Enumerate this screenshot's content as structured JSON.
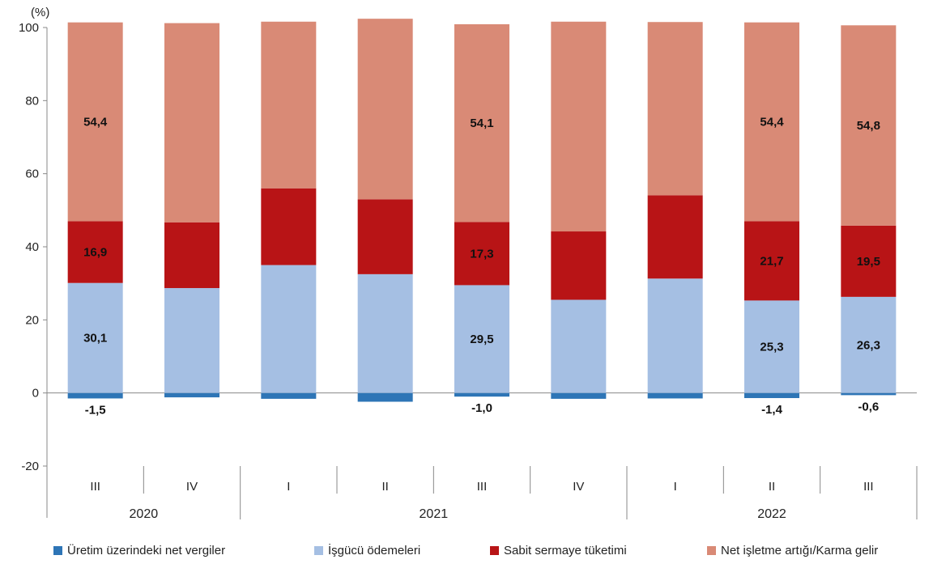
{
  "chart_data": {
    "type": "bar",
    "stacked": true,
    "unit": "(%)",
    "ylim": [
      -20,
      100
    ],
    "yticks": [
      -20,
      0,
      20,
      40,
      60,
      80,
      100
    ],
    "grid": false,
    "legend_position": "bottom",
    "categories": [
      "III",
      "IV",
      "I",
      "II",
      "III",
      "IV",
      "I",
      "II",
      "III"
    ],
    "years": [
      {
        "label": "2020",
        "span": [
          0,
          1
        ]
      },
      {
        "label": "2021",
        "span": [
          2,
          5
        ]
      },
      {
        "label": "2022",
        "span": [
          6,
          8
        ]
      }
    ],
    "series": [
      {
        "name": "Üretim üzerindeki net vergiler",
        "color": "#2e75b6",
        "values": [
          -1.5,
          -1.2,
          -1.6,
          -2.4,
          -1.0,
          -1.6,
          -1.5,
          -1.4,
          -0.6
        ]
      },
      {
        "name": "İşgücü ödemeleri",
        "color": "#a5bfe3",
        "values": [
          30.1,
          28.7,
          35.0,
          32.5,
          29.5,
          25.5,
          31.3,
          25.3,
          26.3
        ]
      },
      {
        "name": "Sabit sermaye tüketimi",
        "color": "#b81416",
        "values": [
          16.9,
          18.0,
          21.0,
          20.5,
          17.3,
          18.7,
          22.8,
          21.7,
          19.5
        ]
      },
      {
        "name": "Net işletme artığı/Karma gelir",
        "color": "#d98a76",
        "values": [
          54.4,
          54.5,
          45.6,
          49.4,
          54.1,
          57.4,
          47.4,
          54.4,
          54.8
        ]
      }
    ],
    "data_labels": [
      {
        "series": 0,
        "index": 0,
        "text": "-1,5"
      },
      {
        "series": 0,
        "index": 4,
        "text": "-1,0"
      },
      {
        "series": 0,
        "index": 7,
        "text": "-1,4"
      },
      {
        "series": 0,
        "index": 8,
        "text": "-0,6"
      },
      {
        "series": 1,
        "index": 0,
        "text": "30,1"
      },
      {
        "series": 1,
        "index": 4,
        "text": "29,5"
      },
      {
        "series": 1,
        "index": 7,
        "text": "25,3"
      },
      {
        "series": 1,
        "index": 8,
        "text": "26,3"
      },
      {
        "series": 2,
        "index": 0,
        "text": "16,9"
      },
      {
        "series": 2,
        "index": 4,
        "text": "17,3"
      },
      {
        "series": 2,
        "index": 7,
        "text": "21,7"
      },
      {
        "series": 2,
        "index": 8,
        "text": "19,5"
      },
      {
        "series": 3,
        "index": 0,
        "text": "54,4"
      },
      {
        "series": 3,
        "index": 4,
        "text": "54,1"
      },
      {
        "series": 3,
        "index": 7,
        "text": "54,4"
      },
      {
        "series": 3,
        "index": 8,
        "text": "54,8"
      }
    ]
  }
}
